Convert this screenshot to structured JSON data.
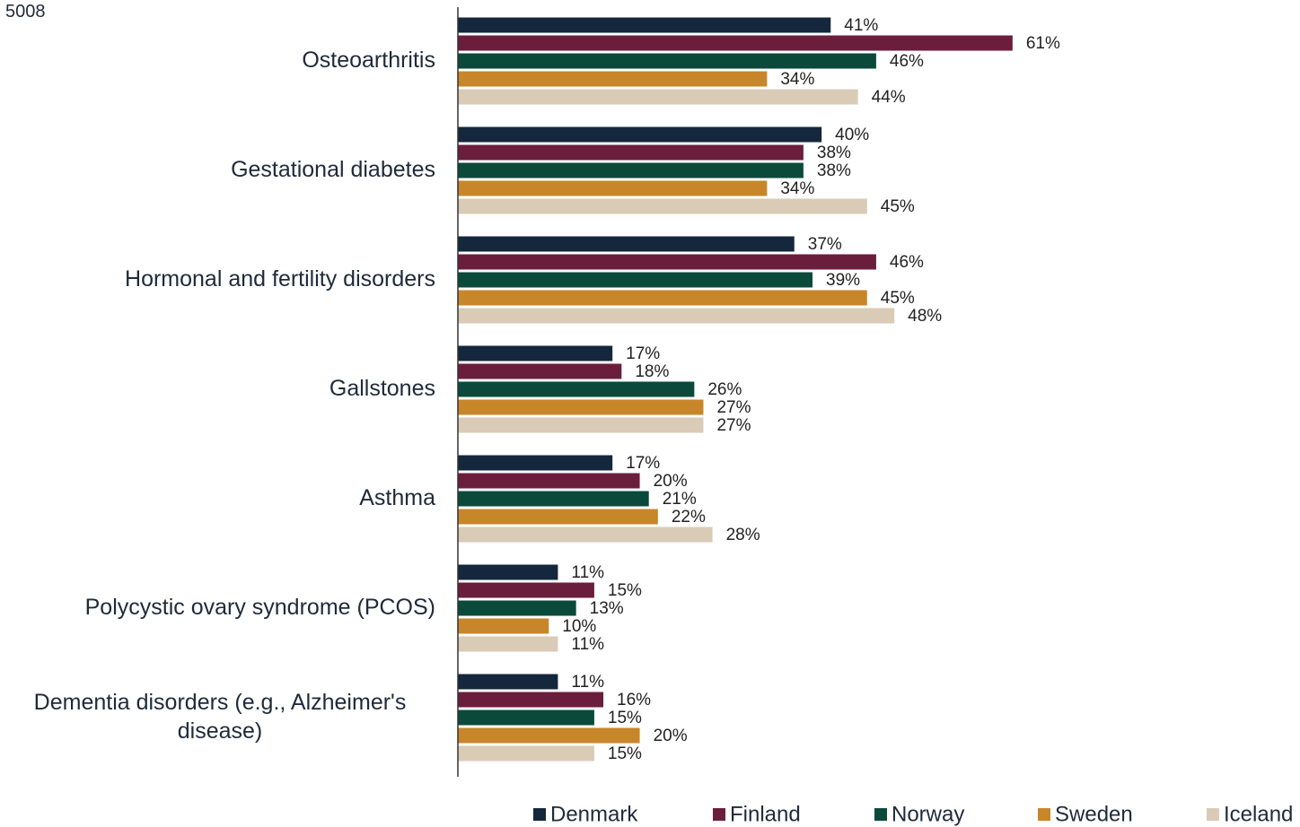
{
  "chart_data": {
    "type": "bar",
    "orientation": "horizontal",
    "annotation": "5008",
    "categories": [
      "Osteoarthritis",
      "Gestational diabetes",
      "Hormonal and fertility disorders",
      "Gallstones",
      "Asthma",
      "Polycystic ovary syndrome (PCOS)",
      "Dementia disorders (e.g., Alzheimer's disease)"
    ],
    "series": [
      {
        "name": "Denmark",
        "color": "#14273d",
        "values": [
          41,
          40,
          37,
          17,
          17,
          11,
          11
        ],
        "value_labels": [
          "41%",
          "40%",
          "37%",
          "17%",
          "17%",
          "11%",
          "11%"
        ]
      },
      {
        "name": "Finland",
        "color": "#6b1e3c",
        "values": [
          61,
          38,
          46,
          18,
          20,
          15,
          16
        ],
        "value_labels": [
          "61%",
          "38%",
          "46%",
          "18%",
          "20%",
          "15%",
          "16%"
        ]
      },
      {
        "name": "Norway",
        "color": "#0b4a3a",
        "values": [
          46,
          38,
          39,
          26,
          21,
          13,
          15
        ],
        "value_labels": [
          "46%",
          "38%",
          "39%",
          "26%",
          "21%",
          "13%",
          "15%"
        ]
      },
      {
        "name": "Sweden",
        "color": "#c8862a",
        "values": [
          34,
          34,
          45,
          27,
          22,
          10,
          20
        ],
        "value_labels": [
          "34%",
          "34%",
          "45%",
          "27%",
          "22%",
          "10%",
          "20%"
        ]
      },
      {
        "name": "Iceland",
        "color": "#d9cbb6",
        "values": [
          44,
          45,
          48,
          27,
          28,
          11,
          15
        ],
        "value_labels": [
          "44%",
          "45%",
          "48%",
          "27%",
          "28%",
          "11%",
          "15%"
        ]
      }
    ],
    "xlim": [
      0,
      70
    ],
    "legend": "bottom"
  }
}
